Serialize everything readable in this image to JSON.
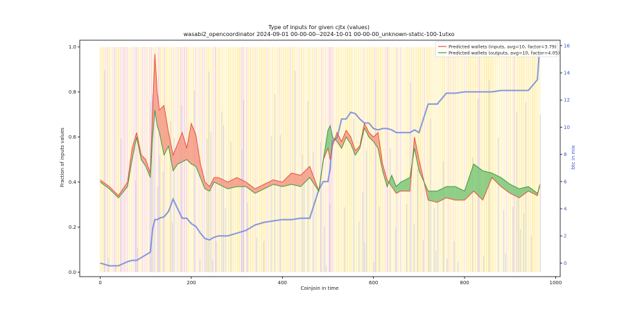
{
  "chart_data": {
    "type": "line",
    "title": "Type of inputs for given cjtx (values)",
    "subtitle": "wasabi2_opencoordinator 2024-09-01 00-00-00--2024-10-01 00-00-00_unknown-static-100-1utxo",
    "xlabel": "Coinjoin in time",
    "ylabel": "Fraction of inputs values",
    "y2label": "btc in mix",
    "xlim": [
      -45,
      1010
    ],
    "ylim": [
      -0.02,
      1.03
    ],
    "y2lim": [
      -1.0,
      16.4
    ],
    "x_ticks": [
      0,
      200,
      400,
      600,
      800,
      1000
    ],
    "x_tick_labels": [
      "0",
      "200",
      "400",
      "600",
      "800",
      "1000"
    ],
    "y_ticks": [
      0.0,
      0.2,
      0.4,
      0.6,
      0.8,
      1.0
    ],
    "y_tick_labels": [
      "0.0",
      "0.2",
      "0.4",
      "0.6",
      "0.8",
      "1.0"
    ],
    "y2_ticks": [
      0,
      2,
      4,
      6,
      8,
      10,
      12,
      14,
      16
    ],
    "y2_tick_labels": [
      "0",
      "2",
      "4",
      "6",
      "8",
      "10",
      "12",
      "14",
      "16"
    ],
    "legend_position": "top-right",
    "grid": false,
    "colors": {
      "inputs": "#e8503a",
      "outputs": "#3a9a3a",
      "btc": "#6f86e0",
      "fill_red": "#f59a86",
      "fill_green": "#7cc77a",
      "bg_yellow": "#ffe88a",
      "bg_pink": "#f6c6c6",
      "bg_blue": "#a8b4f0"
    },
    "x": [
      0,
      20,
      40,
      60,
      70,
      80,
      90,
      100,
      110,
      115,
      120,
      125,
      130,
      140,
      150,
      160,
      170,
      180,
      190,
      200,
      210,
      220,
      230,
      240,
      250,
      260,
      280,
      300,
      320,
      340,
      360,
      380,
      400,
      420,
      440,
      460,
      480,
      490,
      500,
      505,
      510,
      520,
      530,
      540,
      550,
      560,
      570,
      580,
      590,
      600,
      610,
      620,
      630,
      640,
      650,
      660,
      680,
      690,
      700,
      720,
      740,
      760,
      780,
      800,
      820,
      840,
      860,
      880,
      900,
      920,
      940,
      960,
      965
    ],
    "series": [
      {
        "name": "Predicted wallets (inputs, avg=10, factor=3.79)",
        "axis": "left",
        "values": [
          0.41,
          0.38,
          0.34,
          0.4,
          0.55,
          0.62,
          0.52,
          0.5,
          0.44,
          0.72,
          0.97,
          0.8,
          0.72,
          0.74,
          0.62,
          0.52,
          0.57,
          0.62,
          0.55,
          0.66,
          0.61,
          0.48,
          0.4,
          0.38,
          0.42,
          0.42,
          0.4,
          0.42,
          0.4,
          0.37,
          0.39,
          0.41,
          0.4,
          0.44,
          0.43,
          0.47,
          0.36,
          0.5,
          0.55,
          0.5,
          0.56,
          0.62,
          0.58,
          0.63,
          0.6,
          0.54,
          0.56,
          0.66,
          0.62,
          0.6,
          0.62,
          0.48,
          0.41,
          0.38,
          0.35,
          0.36,
          0.36,
          0.6,
          0.5,
          0.32,
          0.31,
          0.33,
          0.32,
          0.32,
          0.36,
          0.32,
          0.42,
          0.38,
          0.35,
          0.33,
          0.36,
          0.34,
          0.39
        ]
      },
      {
        "name": "Predicted wallets (outputs, avg=10, factor=4.05)",
        "axis": "left",
        "values": [
          0.4,
          0.37,
          0.33,
          0.38,
          0.5,
          0.6,
          0.5,
          0.47,
          0.42,
          0.6,
          0.72,
          0.65,
          0.62,
          0.52,
          0.56,
          0.45,
          0.48,
          0.49,
          0.5,
          0.48,
          0.47,
          0.42,
          0.37,
          0.36,
          0.4,
          0.39,
          0.37,
          0.38,
          0.38,
          0.35,
          0.37,
          0.39,
          0.38,
          0.39,
          0.38,
          0.42,
          0.36,
          0.5,
          0.63,
          0.65,
          0.6,
          0.58,
          0.55,
          0.6,
          0.57,
          0.52,
          0.55,
          0.64,
          0.6,
          0.58,
          0.55,
          0.45,
          0.38,
          0.43,
          0.38,
          0.4,
          0.42,
          0.55,
          0.45,
          0.36,
          0.36,
          0.38,
          0.38,
          0.36,
          0.48,
          0.45,
          0.44,
          0.42,
          0.39,
          0.37,
          0.38,
          0.35,
          0.38
        ]
      },
      {
        "name": "",
        "axis": "right",
        "values": [
          0.0,
          -0.2,
          -0.2,
          0.1,
          0.2,
          0.2,
          0.4,
          0.6,
          0.8,
          2.5,
          3.2,
          3.2,
          3.3,
          3.4,
          3.8,
          4.7,
          4.0,
          3.3,
          3.3,
          2.9,
          2.7,
          2.2,
          1.8,
          1.7,
          1.9,
          2.0,
          2.0,
          2.2,
          2.4,
          2.8,
          3.0,
          3.1,
          3.2,
          3.2,
          3.3,
          3.3,
          5.4,
          6.0,
          6.0,
          7.0,
          9.0,
          9.2,
          10.6,
          10.6,
          11.1,
          11.0,
          10.6,
          10.3,
          10.3,
          9.9,
          9.8,
          9.9,
          9.9,
          9.8,
          9.6,
          9.6,
          9.6,
          9.8,
          9.6,
          11.7,
          11.7,
          12.5,
          12.5,
          12.6,
          12.6,
          12.6,
          12.6,
          12.7,
          12.7,
          12.7,
          12.7,
          13.5,
          16.0
        ]
      }
    ]
  }
}
